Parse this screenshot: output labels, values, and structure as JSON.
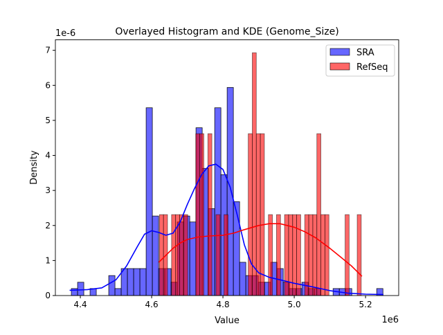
{
  "chart_data": {
    "type": "histogram+kde",
    "title": "Overlayed Histogram and KDE (Genome_Size)",
    "xlabel": "Value",
    "ylabel": "Density",
    "x_offset_label": "1e6",
    "y_offset_label": "1e-6",
    "xlim": [
      4.33,
      5.293
    ],
    "ylim": [
      0,
      7.3
    ],
    "x_ticks": [
      4.4,
      4.6,
      4.8,
      5.0,
      5.2
    ],
    "x_tick_labels": [
      "4.4",
      "4.6",
      "4.8",
      "5.0",
      "5.2"
    ],
    "y_ticks": [
      0,
      1,
      2,
      3,
      4,
      5,
      6,
      7
    ],
    "y_tick_labels": [
      "0",
      "1",
      "2",
      "3",
      "4",
      "5",
      "6",
      "7"
    ],
    "grid": false,
    "legend_position": "top-right",
    "series": [
      {
        "name": "SRA",
        "color": "#0000ff",
        "bin_start": 4.3748,
        "bin_width": 0.01748,
        "values": [
          0.2,
          0.38,
          0,
          0.2,
          0,
          0,
          0.57,
          0.2,
          0.77,
          0.77,
          0.77,
          0.77,
          5.36,
          2.27,
          0.77,
          0.77,
          0.38,
          2.1,
          2.27,
          2.1,
          4.79,
          3.63,
          2.48,
          5.36,
          3.45,
          5.94,
          2.68,
          0.95,
          0.57,
          0.57,
          0.38,
          0.38,
          0.95,
          0.77,
          0.38,
          0.2,
          0.2,
          0.38,
          0.2,
          0.2,
          0,
          0,
          0.2,
          0.2,
          0.2,
          0,
          0,
          0,
          0,
          0.2
        ],
        "kde": [
          [
            4.37,
            0.15
          ],
          [
            4.42,
            0.17
          ],
          [
            4.46,
            0.22
          ],
          [
            4.5,
            0.45
          ],
          [
            4.53,
            0.85
          ],
          [
            4.56,
            1.4
          ],
          [
            4.58,
            1.75
          ],
          [
            4.6,
            1.85
          ],
          [
            4.62,
            1.8
          ],
          [
            4.64,
            1.72
          ],
          [
            4.66,
            1.78
          ],
          [
            4.68,
            2.1
          ],
          [
            4.7,
            2.6
          ],
          [
            4.72,
            3.05
          ],
          [
            4.74,
            3.45
          ],
          [
            4.76,
            3.7
          ],
          [
            4.78,
            3.75
          ],
          [
            4.8,
            3.6
          ],
          [
            4.82,
            3.1
          ],
          [
            4.84,
            2.3
          ],
          [
            4.86,
            1.45
          ],
          [
            4.88,
            0.9
          ],
          [
            4.9,
            0.65
          ],
          [
            4.93,
            0.52
          ],
          [
            4.96,
            0.45
          ],
          [
            5.0,
            0.35
          ],
          [
            5.05,
            0.25
          ],
          [
            5.1,
            0.14
          ],
          [
            5.15,
            0.07
          ],
          [
            5.2,
            0.04
          ],
          [
            5.25,
            0.03
          ]
        ]
      },
      {
        "name": "RefSeq",
        "color": "#ff0000",
        "bin_start": 4.6219,
        "bin_width": 0.01132,
        "values": [
          2.31,
          2.31,
          0,
          2.31,
          2.31,
          2.31,
          2.31,
          0,
          0,
          4.62,
          4.62,
          0,
          4.62,
          0,
          2.31,
          0,
          2.31,
          0,
          0,
          0,
          0,
          0,
          4.62,
          6.93,
          4.62,
          4.62,
          0,
          2.31,
          0,
          2.31,
          0,
          2.31,
          2.31,
          2.31,
          2.31,
          0,
          2.31,
          2.31,
          2.31,
          4.62,
          2.31,
          2.31,
          0,
          0,
          0,
          0,
          2.31,
          0,
          0,
          2.31
        ],
        "kde": [
          [
            4.62,
            0.95
          ],
          [
            4.64,
            1.15
          ],
          [
            4.66,
            1.35
          ],
          [
            4.68,
            1.5
          ],
          [
            4.7,
            1.6
          ],
          [
            4.73,
            1.67
          ],
          [
            4.76,
            1.7
          ],
          [
            4.8,
            1.72
          ],
          [
            4.83,
            1.78
          ],
          [
            4.86,
            1.88
          ],
          [
            4.9,
            2.0
          ],
          [
            4.93,
            2.05
          ],
          [
            4.96,
            2.05
          ],
          [
            5.0,
            1.95
          ],
          [
            5.03,
            1.82
          ],
          [
            5.06,
            1.65
          ],
          [
            5.1,
            1.35
          ],
          [
            5.13,
            1.1
          ],
          [
            5.16,
            0.85
          ],
          [
            5.19,
            0.55
          ]
        ]
      }
    ]
  }
}
